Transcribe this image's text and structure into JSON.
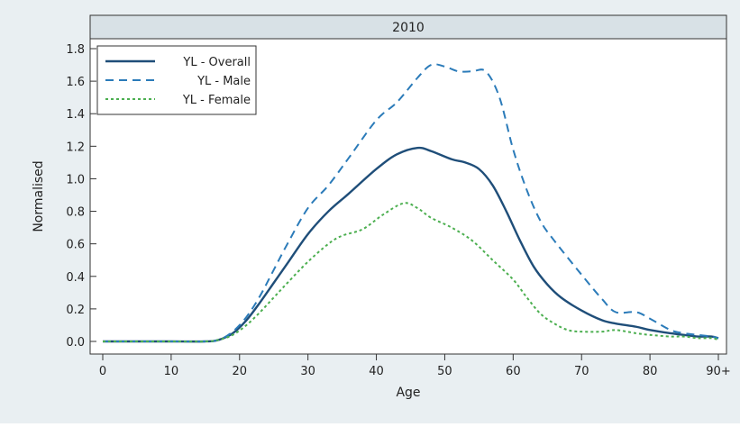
{
  "chart_data": {
    "type": "line",
    "panel_title": "2010",
    "xlabel": "Age",
    "ylabel": "Normalised",
    "xlim": [
      0,
      90
    ],
    "ylim": [
      0,
      1.8
    ],
    "x_ticks": [
      {
        "value": 0,
        "label": "0"
      },
      {
        "value": 10,
        "label": "10"
      },
      {
        "value": 20,
        "label": "20"
      },
      {
        "value": 30,
        "label": "30"
      },
      {
        "value": 40,
        "label": "40"
      },
      {
        "value": 50,
        "label": "50"
      },
      {
        "value": 60,
        "label": "60"
      },
      {
        "value": 70,
        "label": "70"
      },
      {
        "value": 80,
        "label": "80"
      },
      {
        "value": 90,
        "label": "90+"
      }
    ],
    "y_ticks": [
      {
        "value": 0,
        "label": "0.0"
      },
      {
        "value": 0.2,
        "label": "0.2"
      },
      {
        "value": 0.4,
        "label": "0.4"
      },
      {
        "value": 0.6,
        "label": "0.6"
      },
      {
        "value": 0.8,
        "label": "0.8"
      },
      {
        "value": 1.0,
        "label": "1.0"
      },
      {
        "value": 1.2,
        "label": "1.2"
      },
      {
        "value": 1.4,
        "label": "1.4"
      },
      {
        "value": 1.6,
        "label": "1.6"
      },
      {
        "value": 1.8,
        "label": "1.8"
      }
    ],
    "grid": false,
    "legend_position": "top-left",
    "series": [
      {
        "name": "YL - Overall",
        "color": "#1f4e79",
        "line_style": "solid",
        "x": [
          0,
          5,
          10,
          15,
          17,
          19,
          21,
          23,
          25,
          27,
          30,
          33,
          36,
          40,
          43,
          46,
          48,
          51,
          53,
          55,
          57,
          59,
          61,
          63,
          65,
          67,
          70,
          73,
          75,
          78,
          80,
          83,
          85,
          87,
          89,
          90
        ],
        "y": [
          0,
          0,
          0,
          0,
          0.01,
          0.05,
          0.13,
          0.24,
          0.36,
          0.48,
          0.66,
          0.8,
          0.91,
          1.06,
          1.15,
          1.19,
          1.17,
          1.12,
          1.1,
          1.06,
          0.96,
          0.8,
          0.62,
          0.46,
          0.35,
          0.27,
          0.19,
          0.13,
          0.11,
          0.09,
          0.07,
          0.05,
          0.04,
          0.03,
          0.03,
          0.02
        ]
      },
      {
        "name": "YL - Male",
        "color": "#2b7bb9",
        "line_style": "dashed",
        "x": [
          0,
          5,
          10,
          15,
          17,
          19,
          21,
          23,
          25,
          27,
          30,
          33,
          36,
          40,
          43,
          46,
          48,
          50,
          52,
          54,
          56,
          58,
          60,
          62,
          64,
          66,
          70,
          73,
          75,
          78,
          80,
          83,
          85,
          87,
          89,
          90
        ],
        "y": [
          0,
          0,
          0,
          0,
          0.01,
          0.06,
          0.15,
          0.28,
          0.44,
          0.6,
          0.82,
          0.96,
          1.13,
          1.36,
          1.47,
          1.62,
          1.7,
          1.69,
          1.66,
          1.66,
          1.66,
          1.5,
          1.18,
          0.93,
          0.74,
          0.62,
          0.41,
          0.26,
          0.18,
          0.18,
          0.14,
          0.07,
          0.05,
          0.04,
          0.03,
          0.02
        ]
      },
      {
        "name": "YL - Female",
        "color": "#4caf50",
        "line_style": "dotted",
        "x": [
          0,
          5,
          10,
          15,
          17,
          19,
          21,
          23,
          25,
          27,
          30,
          33,
          35,
          38,
          41,
          44,
          46,
          48,
          51,
          54,
          57,
          60,
          62,
          64,
          66,
          68,
          70,
          73,
          75,
          78,
          80,
          83,
          85,
          87,
          89,
          90
        ],
        "y": [
          0,
          0,
          0,
          0,
          0.01,
          0.04,
          0.1,
          0.18,
          0.27,
          0.36,
          0.49,
          0.6,
          0.65,
          0.69,
          0.78,
          0.85,
          0.82,
          0.76,
          0.7,
          0.62,
          0.5,
          0.38,
          0.27,
          0.17,
          0.11,
          0.07,
          0.06,
          0.06,
          0.07,
          0.05,
          0.04,
          0.03,
          0.03,
          0.02,
          0.02,
          0.01
        ]
      }
    ]
  }
}
